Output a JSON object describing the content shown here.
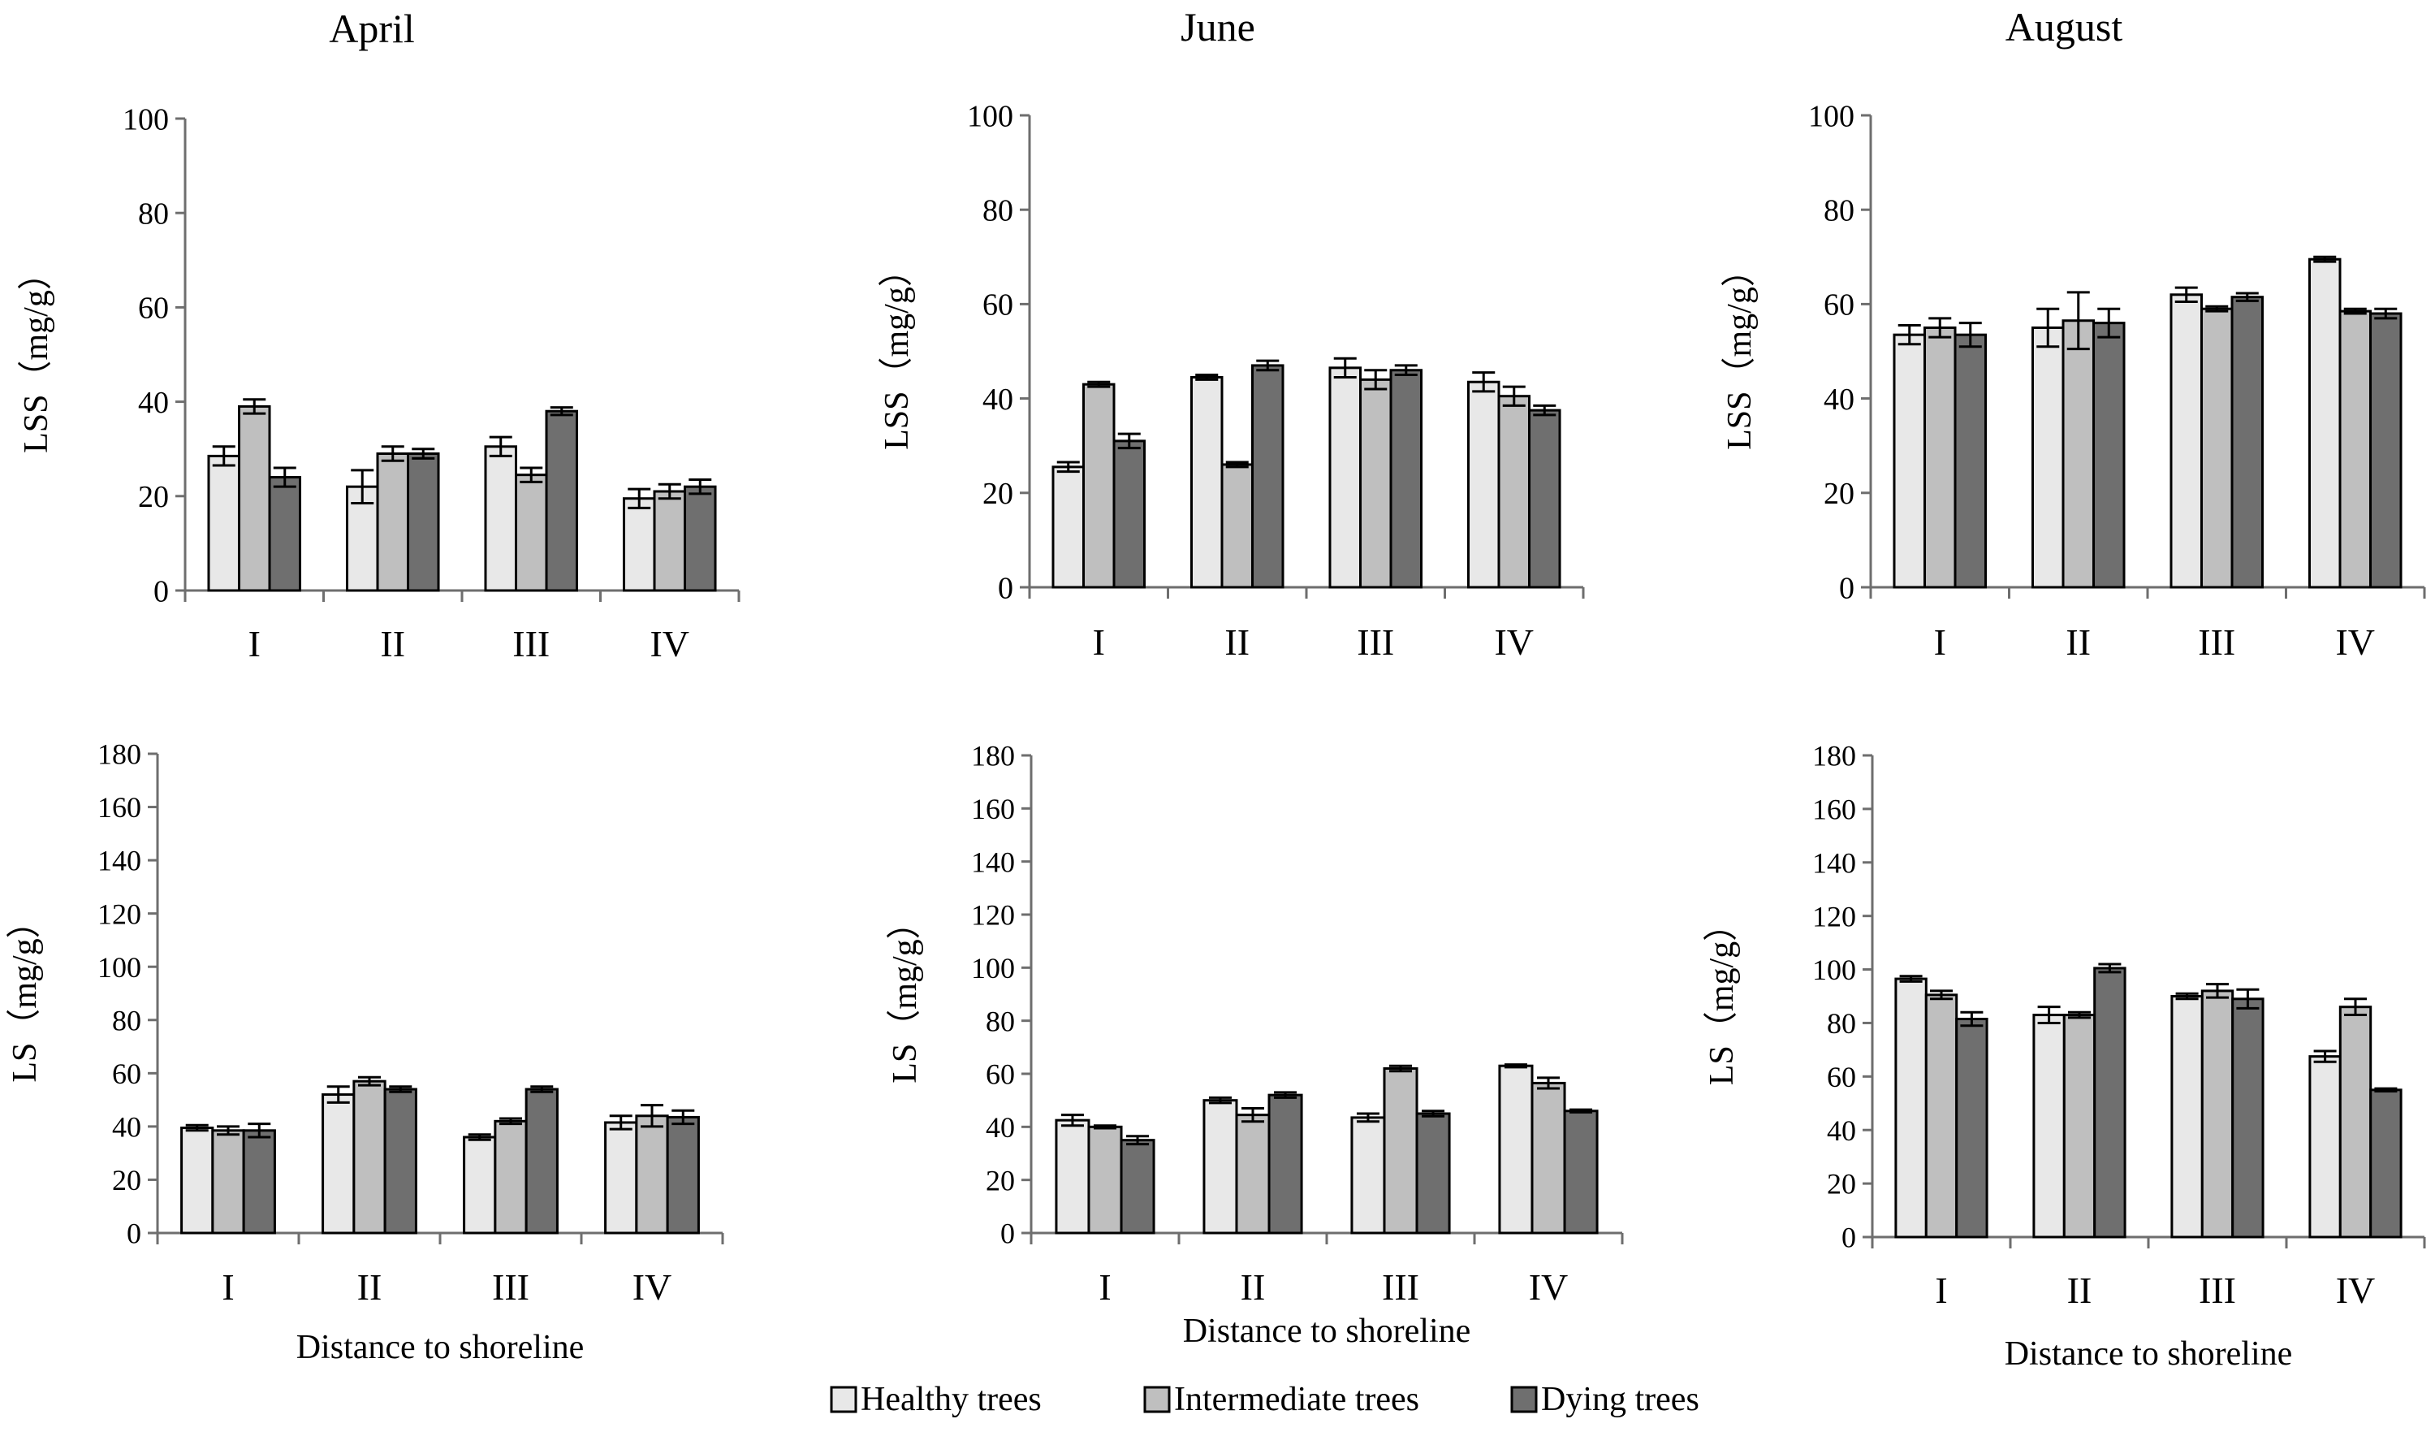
{
  "legend": {
    "items": [
      {
        "label": "Healthy trees",
        "color": "#e8e8e8"
      },
      {
        "label": "Intermediate trees",
        "color": "#bfbfbf"
      },
      {
        "label": "Dying trees",
        "color": "#6f6f6f"
      }
    ]
  },
  "chart_data": [
    {
      "type": "bar",
      "title": "April",
      "xlabel": "",
      "ylabel": "LSS（mg/g）",
      "categories": [
        "I",
        "II",
        "III",
        "IV"
      ],
      "ylim": [
        0,
        100
      ],
      "yticks": [
        0,
        20,
        40,
        60,
        80,
        100
      ],
      "series": [
        {
          "name": "Healthy trees",
          "values": [
            28.5,
            22,
            30.5,
            19.5
          ],
          "errors": [
            2,
            3.5,
            2,
            2
          ]
        },
        {
          "name": "Intermediate trees",
          "values": [
            39,
            29,
            24.5,
            21
          ],
          "errors": [
            1.5,
            1.5,
            1.5,
            1.5
          ]
        },
        {
          "name": "Dying trees",
          "values": [
            24,
            29,
            38,
            22
          ],
          "errors": [
            2,
            1,
            0.8,
            1.5
          ]
        }
      ]
    },
    {
      "type": "bar",
      "title": "June",
      "xlabel": "",
      "ylabel": "LSS（mg/g）",
      "categories": [
        "I",
        "II",
        "III",
        "IV"
      ],
      "ylim": [
        0,
        100
      ],
      "yticks": [
        0,
        20,
        40,
        60,
        80,
        100
      ],
      "series": [
        {
          "name": "Healthy trees",
          "values": [
            25.5,
            44.5,
            46.5,
            43.5
          ],
          "errors": [
            1,
            0.5,
            2,
            2
          ]
        },
        {
          "name": "Intermediate trees",
          "values": [
            43,
            26,
            44,
            40.5
          ],
          "errors": [
            0.5,
            0.5,
            2,
            2
          ]
        },
        {
          "name": "Dying trees",
          "values": [
            31,
            47,
            46,
            37.5
          ],
          "errors": [
            1.5,
            1,
            1,
            1
          ]
        }
      ]
    },
    {
      "type": "bar",
      "title": "August",
      "xlabel": "",
      "ylabel": "LSS（mg/g）",
      "categories": [
        "I",
        "II",
        "III",
        "IV"
      ],
      "ylim": [
        0,
        100
      ],
      "yticks": [
        0,
        20,
        40,
        60,
        80,
        100
      ],
      "series": [
        {
          "name": "Healthy trees",
          "values": [
            53.5,
            55,
            62,
            69.5
          ],
          "errors": [
            2,
            4,
            1.5,
            0.5
          ]
        },
        {
          "name": "Intermediate trees",
          "values": [
            55,
            56.5,
            59,
            58.5
          ],
          "errors": [
            2,
            6,
            0.5,
            0.5
          ]
        },
        {
          "name": "Dying trees",
          "values": [
            53.5,
            56,
            61.5,
            58
          ],
          "errors": [
            2.5,
            3,
            0.8,
            1
          ]
        }
      ]
    },
    {
      "type": "bar",
      "title": "",
      "xlabel": "Distance to shoreline",
      "ylabel": "LS（mg/g）",
      "categories": [
        "I",
        "II",
        "III",
        "IV"
      ],
      "ylim": [
        0,
        180
      ],
      "yticks": [
        0,
        20,
        40,
        60,
        80,
        100,
        120,
        140,
        160,
        180
      ],
      "series": [
        {
          "name": "Healthy trees",
          "values": [
            39.5,
            52,
            36,
            41.5
          ],
          "errors": [
            1,
            3,
            1,
            2.5
          ]
        },
        {
          "name": "Intermediate trees",
          "values": [
            38.5,
            57,
            42,
            44
          ],
          "errors": [
            1.5,
            1.5,
            1,
            4
          ]
        },
        {
          "name": "Dying trees",
          "values": [
            38.5,
            54,
            54,
            43.5
          ],
          "errors": [
            2.5,
            1,
            1,
            2.5
          ]
        }
      ]
    },
    {
      "type": "bar",
      "title": "",
      "xlabel": "Distance to shoreline",
      "ylabel": "LS（mg/g）",
      "categories": [
        "I",
        "II",
        "III",
        "IV"
      ],
      "ylim": [
        0,
        180
      ],
      "yticks": [
        0,
        20,
        40,
        60,
        80,
        100,
        120,
        140,
        160,
        180
      ],
      "series": [
        {
          "name": "Healthy trees",
          "values": [
            42.5,
            50,
            43.5,
            63
          ],
          "errors": [
            2,
            1,
            1.5,
            0.5
          ]
        },
        {
          "name": "Intermediate trees",
          "values": [
            40,
            44.5,
            62,
            56.5
          ],
          "errors": [
            0.5,
            2.5,
            1,
            2
          ]
        },
        {
          "name": "Dying trees",
          "values": [
            35,
            52,
            45,
            46
          ],
          "errors": [
            1.5,
            1,
            1,
            0.5
          ]
        }
      ]
    },
    {
      "type": "bar",
      "title": "",
      "xlabel": "Distance to shoreline",
      "ylabel": "LS（mg/g）",
      "categories": [
        "I",
        "II",
        "III",
        "IV"
      ],
      "ylim": [
        0,
        180
      ],
      "yticks": [
        0,
        20,
        40,
        60,
        80,
        100,
        120,
        140,
        160,
        180
      ],
      "series": [
        {
          "name": "Healthy trees",
          "values": [
            96.5,
            83,
            90,
            67.5
          ],
          "errors": [
            1,
            3,
            1,
            2
          ]
        },
        {
          "name": "Intermediate trees",
          "values": [
            90.5,
            83,
            92,
            86
          ],
          "errors": [
            1.5,
            1,
            2.5,
            3
          ]
        },
        {
          "name": "Dying trees",
          "values": [
            81.5,
            100.5,
            89,
            55
          ],
          "errors": [
            2.5,
            1.5,
            3.5,
            0.5
          ]
        }
      ]
    }
  ]
}
